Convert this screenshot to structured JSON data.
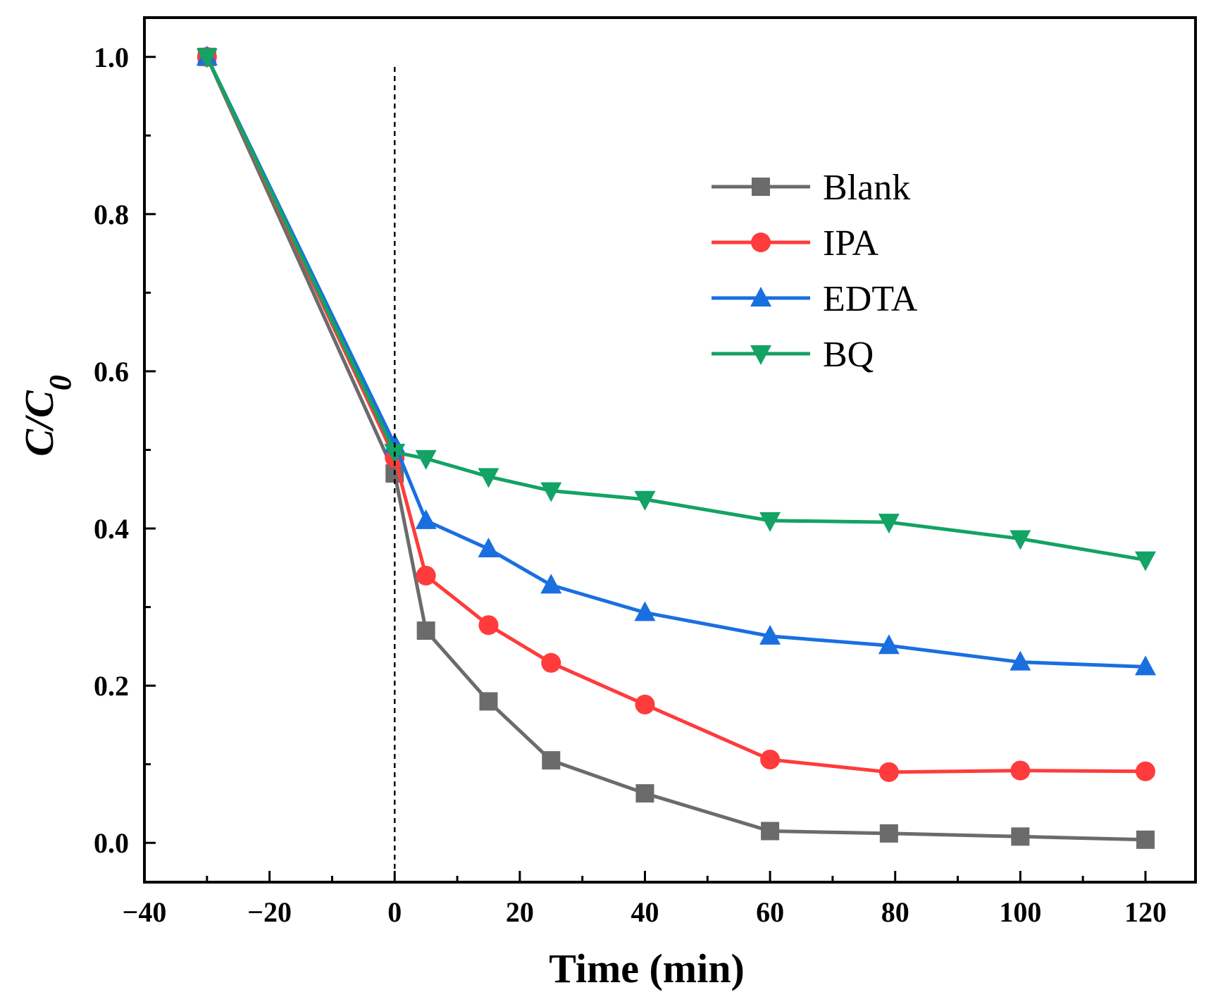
{
  "chart_data": {
    "type": "line",
    "title": "",
    "xlabel": "Time (min)",
    "ylabel_main": "C/C",
    "ylabel_sub": "0",
    "xlim": [
      -40,
      128
    ],
    "ylim": [
      -0.05,
      1.05
    ],
    "x_ticks": [
      -40,
      -20,
      0,
      20,
      40,
      60,
      80,
      100,
      120
    ],
    "x_tick_labels": [
      "−40",
      "−20",
      "0",
      "20",
      "40",
      "60",
      "80",
      "100",
      "120"
    ],
    "y_ticks": [
      0.0,
      0.2,
      0.4,
      0.6,
      0.8,
      1.0
    ],
    "y_tick_labels": [
      "0.0",
      "0.2",
      "0.4",
      "0.6",
      "0.8",
      "1.0"
    ],
    "reference_line_x": 0,
    "legend_position": "top-right",
    "x": [
      -30,
      0,
      5,
      15,
      25,
      40,
      60,
      79,
      100,
      120
    ],
    "series": [
      {
        "name": "Blank",
        "color": "#6b6b6b",
        "marker": "square",
        "values": [
          1.0,
          0.47,
          0.27,
          0.18,
          0.105,
          0.063,
          0.015,
          0.012,
          0.008,
          0.004
        ]
      },
      {
        "name": "IPA",
        "color": "#ff3b3b",
        "marker": "circle",
        "values": [
          1.0,
          0.49,
          0.34,
          0.277,
          0.229,
          0.176,
          0.106,
          0.09,
          0.092,
          0.091
        ]
      },
      {
        "name": "EDTA",
        "color": "#1a6fe0",
        "marker": "triangle-up",
        "values": [
          1.0,
          0.507,
          0.41,
          0.374,
          0.328,
          0.293,
          0.263,
          0.251,
          0.23,
          0.224
        ]
      },
      {
        "name": "BQ",
        "color": "#13a364",
        "marker": "triangle-down",
        "values": [
          1.0,
          0.497,
          0.489,
          0.466,
          0.448,
          0.437,
          0.41,
          0.408,
          0.387,
          0.36
        ]
      }
    ]
  }
}
